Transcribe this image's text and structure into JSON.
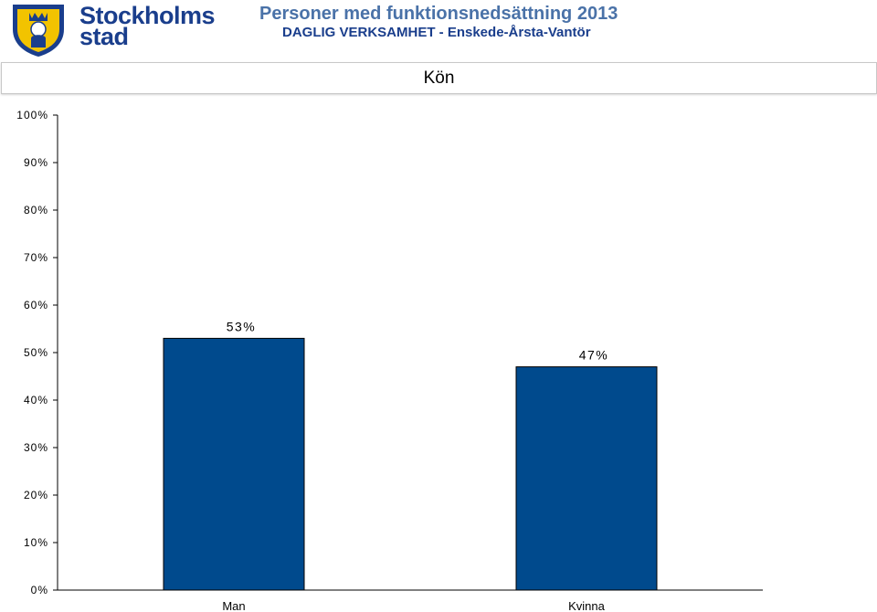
{
  "header": {
    "logo_line1": "Stockholms",
    "logo_line2": "stad",
    "title": "Personer med funktionsnedsättning 2013",
    "subtitle": "DAGLIG VERKSAMHET - Enskede-Årsta-Vantör"
  },
  "colors": {
    "bar": "#004a8d",
    "logo_blue": "#1a3e8c",
    "logo_gold": "#f2c300",
    "title": "#4a72a8"
  },
  "chart_data": {
    "type": "bar",
    "title": "Kön",
    "categories": [
      "Man",
      "Kvinna"
    ],
    "values": [
      53,
      47
    ],
    "data_labels": [
      "53%",
      "47%"
    ],
    "unit": "%",
    "ylim": [
      0,
      100
    ],
    "yticks": [
      0,
      10,
      20,
      30,
      40,
      50,
      60,
      70,
      80,
      90,
      100
    ],
    "ytick_labels": [
      "0%",
      "10%",
      "20%",
      "30%",
      "40%",
      "50%",
      "60%",
      "70%",
      "80%",
      "90%",
      "100%"
    ],
    "grid": false,
    "legend": "none"
  }
}
